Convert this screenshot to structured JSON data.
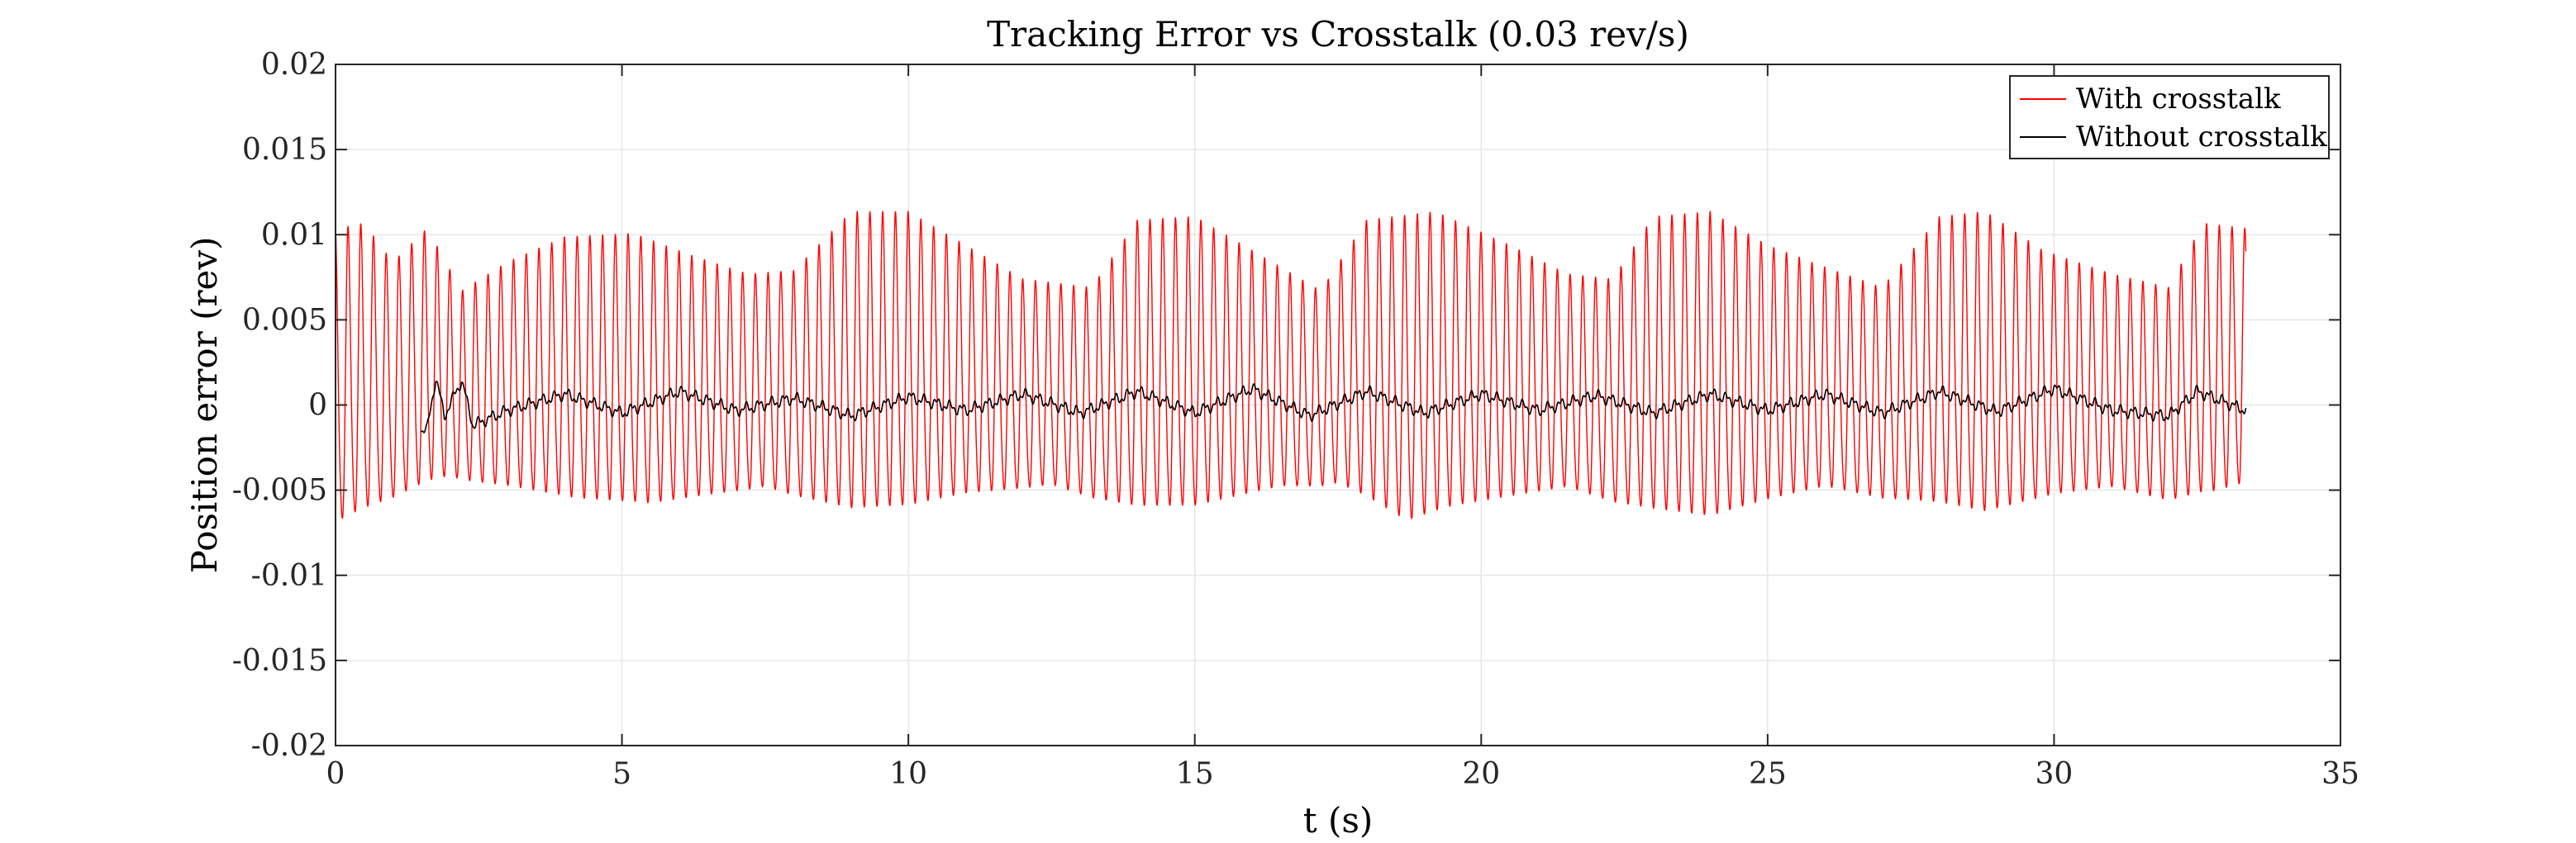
{
  "chart_data": {
    "type": "line",
    "title": "Tracking Error vs Crosstalk (0.03 rev/s)",
    "xlabel": "t (s)",
    "ylabel": "Position error (rev)",
    "xlim": [
      0,
      35
    ],
    "ylim": [
      -0.02,
      0.02
    ],
    "xticks": [
      0,
      5,
      10,
      15,
      20,
      25,
      30,
      35
    ],
    "xtick_labels": [
      "0",
      "5",
      "10",
      "15",
      "20",
      "25",
      "30",
      "35"
    ],
    "yticks": [
      -0.02,
      -0.015,
      -0.01,
      -0.005,
      0,
      0.005,
      0.01,
      0.015,
      0.02
    ],
    "ytick_labels": [
      "-0.02",
      "-0.015",
      "-0.01",
      "-0.005",
      "0",
      "0.005",
      "0.01",
      "0.015",
      "0.02"
    ],
    "grid": true,
    "legend_position": "top-right",
    "series": [
      {
        "name": "With crosstalk",
        "color": "#ff0000",
        "description": "oscillation ~4.5 Hz, peaks about +0.005 to +0.0115, troughs about -0.004 to -0.009",
        "t_range": [
          0,
          33.35
        ],
        "envelope_max": [
          [
            0.0,
            0.0105
          ],
          [
            0.5,
            0.0108
          ],
          [
            1.0,
            0.0085
          ],
          [
            1.6,
            0.0105
          ],
          [
            2.2,
            0.0068
          ],
          [
            3.0,
            0.0085
          ],
          [
            4.0,
            0.01
          ],
          [
            5.2,
            0.0102
          ],
          [
            6.3,
            0.0088
          ],
          [
            7.2,
            0.0078
          ],
          [
            8.0,
            0.008
          ],
          [
            9.0,
            0.0115
          ],
          [
            10.0,
            0.0115
          ],
          [
            11.0,
            0.0095
          ],
          [
            12.0,
            0.0075
          ],
          [
            13.2,
            0.007
          ],
          [
            14.0,
            0.011
          ],
          [
            15.0,
            0.0112
          ],
          [
            16.2,
            0.0088
          ],
          [
            17.2,
            0.0068
          ],
          [
            18.0,
            0.011
          ],
          [
            19.2,
            0.0115
          ],
          [
            20.5,
            0.0095
          ],
          [
            21.5,
            0.0078
          ],
          [
            22.3,
            0.0075
          ],
          [
            23.0,
            0.0112
          ],
          [
            24.0,
            0.0115
          ],
          [
            25.0,
            0.0095
          ],
          [
            26.0,
            0.0082
          ],
          [
            27.0,
            0.007
          ],
          [
            28.0,
            0.0112
          ],
          [
            28.8,
            0.0115
          ],
          [
            29.8,
            0.0092
          ],
          [
            31.0,
            0.0078
          ],
          [
            32.0,
            0.007
          ],
          [
            32.6,
            0.0108
          ],
          [
            33.35,
            0.0105
          ]
        ],
        "envelope_min": [
          [
            0.0,
            -0.0088
          ],
          [
            1.0,
            -0.007
          ],
          [
            2.0,
            -0.0055
          ],
          [
            3.0,
            -0.0062
          ],
          [
            4.2,
            -0.0072
          ],
          [
            5.5,
            -0.0075
          ],
          [
            6.5,
            -0.0068
          ],
          [
            7.5,
            -0.0062
          ],
          [
            9.0,
            -0.008
          ],
          [
            10.0,
            -0.0078
          ],
          [
            11.0,
            -0.0068
          ],
          [
            12.5,
            -0.006
          ],
          [
            14.0,
            -0.0078
          ],
          [
            15.0,
            -0.0078
          ],
          [
            16.5,
            -0.0062
          ],
          [
            17.5,
            -0.006
          ],
          [
            18.7,
            -0.0088
          ],
          [
            19.5,
            -0.0078
          ],
          [
            20.5,
            -0.007
          ],
          [
            21.5,
            -0.0062
          ],
          [
            23.0,
            -0.008
          ],
          [
            24.0,
            -0.0085
          ],
          [
            25.0,
            -0.0072
          ],
          [
            26.0,
            -0.0062
          ],
          [
            27.5,
            -0.0072
          ],
          [
            28.8,
            -0.0082
          ],
          [
            30.0,
            -0.0068
          ],
          [
            31.0,
            -0.0062
          ],
          [
            32.0,
            -0.007
          ],
          [
            32.8,
            -0.0068
          ],
          [
            33.35,
            -0.0062
          ]
        ]
      },
      {
        "name": "Without crosstalk",
        "color": "#000000",
        "description": "small ripple around zero, mostly within about -0.001 to +0.0015",
        "t_range": [
          1.5,
          33.35
        ],
        "values_sampled": [
          [
            1.6,
            -0.0018
          ],
          [
            1.75,
            0.002
          ],
          [
            1.9,
            -0.0008
          ],
          [
            2.2,
            0.0018
          ],
          [
            2.4,
            -0.0015
          ],
          [
            3.0,
            -0.0004
          ],
          [
            4.0,
            0.0008
          ],
          [
            5.0,
            -0.0006
          ],
          [
            6.0,
            0.001
          ],
          [
            7.0,
            -0.0004
          ],
          [
            8.0,
            0.0005
          ],
          [
            9.0,
            -0.0008
          ],
          [
            10.0,
            0.0006
          ],
          [
            11.0,
            -0.0004
          ],
          [
            12.0,
            0.0008
          ],
          [
            13.0,
            -0.0006
          ],
          [
            14.0,
            0.001
          ],
          [
            15.0,
            -0.0006
          ],
          [
            16.0,
            0.0012
          ],
          [
            17.0,
            -0.0008
          ],
          [
            18.0,
            0.001
          ],
          [
            19.0,
            -0.0006
          ],
          [
            20.0,
            0.0008
          ],
          [
            21.0,
            -0.0004
          ],
          [
            22.0,
            0.0007
          ],
          [
            23.0,
            -0.0006
          ],
          [
            24.0,
            0.0008
          ],
          [
            25.0,
            -0.0004
          ],
          [
            26.0,
            0.0008
          ],
          [
            27.0,
            -0.0006
          ],
          [
            28.0,
            0.001
          ],
          [
            29.0,
            -0.0005
          ],
          [
            30.0,
            0.0012
          ],
          [
            31.0,
            -0.0004
          ],
          [
            32.0,
            -0.0008
          ],
          [
            32.5,
            0.001
          ],
          [
            33.35,
            -0.0004
          ]
        ]
      }
    ]
  }
}
